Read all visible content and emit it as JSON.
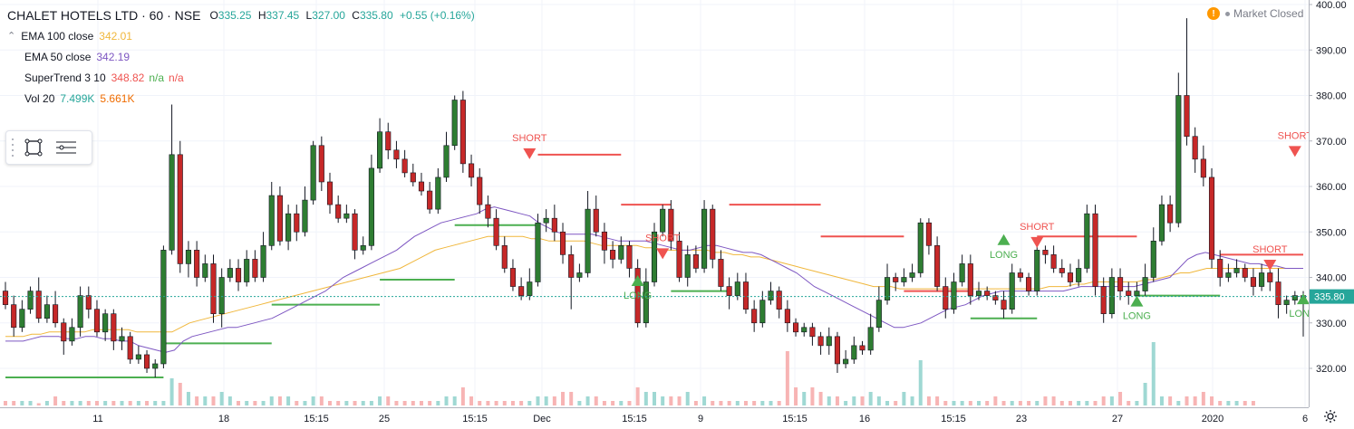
{
  "header": {
    "symbol": "CHALET HOTELS LTD · 60 · NSE",
    "open_label": "O",
    "open": "335.25",
    "high_label": "H",
    "high": "337.45",
    "low_label": "L",
    "low": "327.00",
    "close_label": "C",
    "close": "335.80",
    "change": "+0.55 (+0.16%)"
  },
  "indicators": [
    {
      "name": "EMA 100 close",
      "values": [
        "342.01"
      ],
      "colors": [
        "#f0b73c"
      ]
    },
    {
      "name": "EMA 50 close",
      "values": [
        "342.19"
      ],
      "colors": [
        "#7e57c2"
      ]
    },
    {
      "name": "SuperTrend 3 10",
      "values": [
        "348.82",
        "n/a",
        "n/a"
      ],
      "colors": [
        "#ef5350",
        "#4caf50",
        "#ef5350"
      ]
    },
    {
      "name": "Vol 20",
      "values": [
        "7.499K",
        "5.661K"
      ],
      "colors": [
        "#26a69a",
        "#ef6c00"
      ]
    }
  ],
  "market_status": "Market Closed",
  "icons": {
    "warning": "warning-icon",
    "rectangle": "rectangle-tool-icon",
    "settings": "settings-list-icon",
    "gear": "gear-icon"
  },
  "colors": {
    "up": "#4caf50",
    "down": "#ef5350",
    "up_body": "#2e7d32",
    "down_body": "#c62828",
    "ema100": "#f0b73c",
    "ema50": "#7e57c2",
    "st_up": "#4caf50",
    "st_down": "#ef5350",
    "vol_up": "#9fd8d3",
    "vol_down": "#f7b4b4",
    "last_price": "#26a69a"
  },
  "chart_data": {
    "type": "candlestick",
    "y_axis": {
      "min": 320,
      "max": 400,
      "ticks": [
        "400.00",
        "390.00",
        "380.00",
        "370.00",
        "360.00",
        "350.00",
        "340.00",
        "330.00",
        "320.00"
      ],
      "position": "right"
    },
    "x_axis": {
      "tick_labels": [
        "11",
        "18",
        "15:15",
        "25",
        "15:15",
        "Dec",
        "15:15",
        "9",
        "15:15",
        "16",
        "15:15",
        "23",
        "27",
        "2020",
        "6"
      ]
    },
    "last_price": "335.80",
    "candles": [
      [
        337,
        334,
        339,
        333
      ],
      [
        334,
        329,
        336,
        327
      ],
      [
        329,
        333,
        335,
        328
      ],
      [
        333,
        337,
        338,
        332
      ],
      [
        337,
        331,
        340,
        330
      ],
      [
        331,
        334,
        336,
        330
      ],
      [
        334,
        330,
        337,
        329
      ],
      [
        330,
        326,
        331,
        323
      ],
      [
        326,
        329,
        331,
        325
      ],
      [
        329,
        336,
        338,
        327
      ],
      [
        336,
        333,
        338,
        331
      ],
      [
        333,
        328,
        335,
        327
      ],
      [
        328,
        332,
        333,
        326
      ],
      [
        332,
        326,
        333,
        324
      ],
      [
        326,
        327,
        329,
        324
      ],
      [
        327,
        322,
        328,
        321
      ],
      [
        322,
        323,
        325,
        321
      ],
      [
        323,
        320,
        324,
        319
      ],
      [
        320,
        321,
        322,
        318
      ],
      [
        321,
        346,
        347,
        320
      ],
      [
        346,
        367,
        378,
        345
      ],
      [
        367,
        343,
        370,
        341
      ],
      [
        343,
        346,
        348,
        340
      ],
      [
        346,
        340,
        348,
        338
      ],
      [
        340,
        343,
        345,
        339
      ],
      [
        343,
        332,
        345,
        330
      ],
      [
        332,
        340,
        342,
        329
      ],
      [
        340,
        342,
        344,
        339
      ],
      [
        342,
        339,
        344,
        337
      ],
      [
        339,
        344,
        346,
        338
      ],
      [
        344,
        340,
        346,
        339
      ],
      [
        340,
        347,
        350,
        339
      ],
      [
        347,
        358,
        361,
        346
      ],
      [
        358,
        348,
        360,
        347
      ],
      [
        348,
        354,
        356,
        346
      ],
      [
        354,
        350,
        356,
        348
      ],
      [
        350,
        357,
        360,
        349
      ],
      [
        357,
        369,
        370,
        356
      ],
      [
        369,
        361,
        371,
        359
      ],
      [
        361,
        356,
        363,
        354
      ],
      [
        356,
        353,
        358,
        352
      ],
      [
        353,
        354,
        356,
        352
      ],
      [
        354,
        346,
        355,
        344
      ],
      [
        346,
        347,
        349,
        345
      ],
      [
        347,
        364,
        367,
        346
      ],
      [
        364,
        372,
        375,
        363
      ],
      [
        372,
        368,
        374,
        366
      ],
      [
        368,
        366,
        370,
        364
      ],
      [
        366,
        363,
        368,
        362
      ],
      [
        363,
        361,
        365,
        360
      ],
      [
        361,
        359,
        363,
        358
      ],
      [
        359,
        355,
        361,
        354
      ],
      [
        355,
        362,
        364,
        354
      ],
      [
        362,
        369,
        372,
        361
      ],
      [
        369,
        379,
        380,
        368
      ],
      [
        379,
        365,
        381,
        363
      ],
      [
        365,
        362,
        367,
        360
      ],
      [
        362,
        356,
        364,
        354
      ],
      [
        356,
        353,
        358,
        351
      ],
      [
        353,
        347,
        355,
        346
      ],
      [
        347,
        342,
        349,
        341
      ],
      [
        342,
        338,
        344,
        337
      ],
      [
        338,
        336,
        340,
        335
      ],
      [
        336,
        339,
        342,
        335
      ],
      [
        339,
        352,
        354,
        338
      ],
      [
        352,
        353,
        355,
        350
      ],
      [
        353,
        350,
        356,
        348
      ],
      [
        350,
        345,
        352,
        343
      ],
      [
        345,
        340,
        347,
        333
      ],
      [
        340,
        341,
        343,
        339
      ],
      [
        341,
        355,
        359,
        340
      ],
      [
        355,
        350,
        358,
        349
      ],
      [
        350,
        346,
        352,
        343
      ],
      [
        346,
        344,
        348,
        342
      ],
      [
        344,
        347,
        349,
        343
      ],
      [
        347,
        342,
        348,
        340
      ],
      [
        342,
        330,
        344,
        329
      ],
      [
        330,
        339,
        342,
        329
      ],
      [
        339,
        350,
        352,
        338
      ],
      [
        350,
        355,
        356,
        349
      ],
      [
        355,
        348,
        357,
        346
      ],
      [
        348,
        340,
        350,
        339
      ],
      [
        340,
        345,
        347,
        338
      ],
      [
        345,
        342,
        347,
        341
      ],
      [
        342,
        355,
        357,
        341
      ],
      [
        355,
        344,
        356,
        342
      ],
      [
        344,
        338,
        346,
        337
      ],
      [
        338,
        336,
        340,
        333
      ],
      [
        336,
        339,
        341,
        335
      ],
      [
        339,
        333,
        341,
        332
      ],
      [
        333,
        330,
        335,
        328
      ],
      [
        330,
        335,
        337,
        329
      ],
      [
        335,
        337,
        339,
        334
      ],
      [
        337,
        333,
        338,
        331
      ],
      [
        333,
        330,
        335,
        328
      ],
      [
        330,
        328,
        331,
        327
      ],
      [
        328,
        329,
        330,
        327
      ],
      [
        329,
        327,
        330,
        325
      ],
      [
        327,
        325,
        328,
        323
      ],
      [
        325,
        327,
        329,
        323
      ],
      [
        327,
        321,
        328,
        319
      ],
      [
        321,
        322,
        324,
        320
      ],
      [
        322,
        325,
        327,
        321
      ],
      [
        325,
        324,
        326,
        323
      ],
      [
        324,
        329,
        332,
        323
      ],
      [
        329,
        335,
        338,
        328
      ],
      [
        335,
        340,
        343,
        334
      ],
      [
        340,
        339,
        341,
        337
      ],
      [
        339,
        340,
        342,
        338
      ],
      [
        340,
        341,
        343,
        339
      ],
      [
        341,
        352,
        353,
        340
      ],
      [
        352,
        347,
        353,
        345
      ],
      [
        347,
        338,
        349,
        337
      ],
      [
        338,
        333,
        340,
        331
      ],
      [
        333,
        339,
        341,
        332
      ],
      [
        339,
        343,
        345,
        338
      ],
      [
        343,
        336,
        345,
        334
      ],
      [
        336,
        337,
        339,
        335
      ],
      [
        337,
        336,
        338,
        335
      ],
      [
        336,
        335,
        337,
        334
      ],
      [
        335,
        333,
        337,
        331
      ],
      [
        333,
        341,
        343,
        332
      ],
      [
        341,
        340,
        342,
        339
      ],
      [
        340,
        337,
        341,
        336
      ],
      [
        337,
        346,
        348,
        336
      ],
      [
        346,
        345,
        347,
        343
      ],
      [
        345,
        342,
        347,
        341
      ],
      [
        342,
        341,
        344,
        340
      ],
      [
        341,
        339,
        343,
        338
      ],
      [
        339,
        342,
        344,
        338
      ],
      [
        342,
        354,
        356,
        341
      ],
      [
        354,
        338,
        356,
        336
      ],
      [
        338,
        332,
        340,
        330
      ],
      [
        332,
        340,
        342,
        331
      ],
      [
        340,
        337,
        342,
        335
      ],
      [
        337,
        336,
        339,
        334
      ],
      [
        336,
        337,
        339,
        335
      ],
      [
        337,
        340,
        343,
        336
      ],
      [
        340,
        348,
        351,
        339
      ],
      [
        348,
        356,
        358,
        347
      ],
      [
        356,
        352,
        358,
        350
      ],
      [
        352,
        380,
        385,
        351
      ],
      [
        380,
        371,
        397,
        369
      ],
      [
        371,
        366,
        373,
        363
      ],
      [
        366,
        362,
        369,
        360
      ],
      [
        362,
        344,
        364,
        342
      ],
      [
        344,
        340,
        346,
        338
      ],
      [
        340,
        341,
        343,
        339
      ],
      [
        341,
        342,
        344,
        340
      ],
      [
        342,
        340,
        343,
        339
      ],
      [
        340,
        338,
        342,
        336
      ],
      [
        338,
        341,
        343,
        337
      ],
      [
        341,
        339,
        343,
        337
      ],
      [
        339,
        334,
        342,
        331
      ],
      [
        334,
        335,
        336,
        332
      ],
      [
        335,
        336,
        337,
        334
      ],
      [
        336,
        335,
        337,
        327
      ]
    ],
    "ema100": [
      327,
      327,
      327,
      327.5,
      327.5,
      328,
      328,
      328,
      328,
      328,
      328.5,
      328.5,
      328.5,
      328.5,
      328.5,
      328,
      328,
      328,
      328,
      328,
      329,
      330,
      330.5,
      331,
      331.5,
      332,
      332.5,
      333,
      333.5,
      334,
      334.5,
      335,
      335.5,
      336,
      336.5,
      337,
      337.5,
      338,
      338.5,
      339,
      339.5,
      340,
      340.5,
      341,
      341.5,
      342,
      343,
      344,
      345,
      346,
      346.5,
      347,
      347.5,
      348,
      348.5,
      349,
      349,
      349,
      349,
      349,
      348.5,
      348.5,
      348,
      348,
      348,
      348,
      348,
      347.5,
      347,
      347,
      347,
      347,
      347,
      346.5,
      346.5,
      346,
      346,
      346,
      346,
      346,
      346,
      345.5,
      345.5,
      345,
      345,
      344.5,
      344.5,
      344,
      343.5,
      343,
      342.5,
      342,
      341.5,
      341,
      340.5,
      340,
      339.5,
      339,
      338.5,
      338,
      338,
      338,
      337.5,
      337.5,
      337.5,
      337.5,
      337.5,
      337.5,
      337.5,
      337.5,
      337.5,
      337.5,
      337.5,
      337.5,
      337.5,
      337.5,
      337.5,
      337.5,
      337.5,
      338,
      338,
      338,
      338.5,
      338.5,
      339,
      339,
      339,
      339,
      339,
      339,
      339.5,
      339.5,
      340,
      340.5,
      341,
      341,
      341.5,
      342,
      342,
      342,
      342,
      342,
      342,
      342,
      342,
      342,
      342,
      342,
      342
    ],
    "ema50": [
      326,
      326,
      326,
      326.5,
      327,
      327,
      327,
      326.5,
      326.5,
      327,
      327,
      326.5,
      326.5,
      326,
      326,
      325,
      324.5,
      324,
      323.5,
      324,
      326,
      327,
      327.5,
      328,
      328.5,
      329,
      329,
      329.5,
      330,
      330.5,
      331,
      332,
      333,
      334,
      335,
      336,
      337,
      338.5,
      340,
      341,
      342,
      343,
      344,
      345,
      346,
      347.5,
      349,
      350,
      351,
      352,
      352.5,
      353,
      353.5,
      354,
      355,
      355.5,
      355,
      354.5,
      354,
      353.5,
      352,
      351,
      350,
      349.5,
      349.5,
      349.5,
      349.5,
      349,
      348.5,
      348,
      348,
      348,
      348,
      347.5,
      347,
      346.5,
      346,
      346,
      346.5,
      347,
      347,
      346.5,
      346,
      345.5,
      345.5,
      345,
      344,
      343,
      342,
      341,
      339.5,
      338,
      337,
      336,
      335,
      334,
      333,
      332,
      331,
      330,
      329,
      329,
      329.5,
      330,
      331,
      332,
      333,
      333.5,
      334,
      335,
      336,
      336.5,
      337,
      337,
      337,
      337,
      337,
      337,
      337,
      337,
      337.5,
      338,
      338,
      338,
      338,
      338,
      338,
      338,
      338.5,
      339,
      339.5,
      340,
      342,
      344,
      345,
      345.5,
      345,
      344.5,
      344,
      343.5,
      343,
      343,
      342.5,
      342.5,
      342,
      342,
      342
    ],
    "annotations": [
      {
        "label": "SHORT",
        "type": "short"
      },
      {
        "label": "LONG",
        "type": "long"
      },
      {
        "label": "SHORT",
        "type": "short"
      },
      {
        "label": "LONG",
        "type": "long"
      },
      {
        "label": "SHORT",
        "type": "short"
      },
      {
        "label": "LONG",
        "type": "long"
      },
      {
        "label": "SHORT",
        "type": "short"
      },
      {
        "label": "LONG",
        "type": "long"
      },
      {
        "label": "SHORT",
        "type": "short"
      }
    ],
    "volume": [
      1,
      1,
      1,
      1,
      0.5,
      1,
      2,
      1,
      1,
      1,
      1,
      1,
      1,
      1,
      1,
      1,
      1,
      1,
      1,
      1,
      6,
      5,
      3,
      2,
      2,
      2,
      3,
      2,
      1,
      1,
      1,
      1,
      2,
      2,
      2,
      1,
      1,
      2,
      2,
      1,
      1,
      1,
      1,
      1,
      1,
      2,
      2,
      1,
      1,
      1,
      1,
      1,
      1,
      2,
      2,
      4,
      2,
      1,
      1,
      1,
      1,
      1,
      1,
      1,
      2,
      2,
      2,
      3,
      3,
      1,
      2,
      2,
      1,
      1,
      1,
      1,
      4,
      3,
      3,
      2,
      2,
      2,
      3,
      1,
      2,
      1,
      1,
      1,
      1,
      1,
      1,
      1,
      1,
      1,
      12,
      4,
      3,
      4,
      3,
      2,
      2,
      1,
      2,
      2,
      3,
      2,
      1,
      1,
      3,
      2,
      10,
      2,
      2,
      1,
      1,
      1,
      1,
      1,
      1,
      2,
      1,
      1,
      1,
      1,
      1,
      2,
      2,
      1,
      1,
      1,
      1,
      1,
      2,
      2,
      3,
      1,
      1,
      5,
      14,
      2,
      2,
      1,
      2,
      2,
      3,
      2,
      1,
      1,
      1,
      1,
      1
    ]
  }
}
